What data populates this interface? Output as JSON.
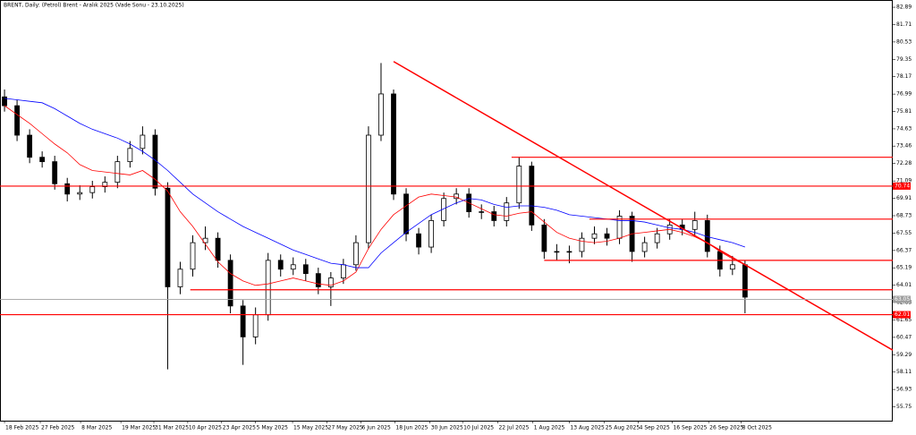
{
  "chart_data": {
    "type": "candlestick",
    "title": "BRENT, Daily:  (Petrol) Brent - Aralık 2025 (Vade Sonu - 23.10.2025)",
    "open": [
      76.8,
      76.2,
      74.2,
      72.7,
      72.4,
      70.9,
      70.2,
      70.3,
      70.7,
      71.0,
      72.4,
      73.3,
      74.2,
      70.6,
      63.9,
      65.1,
      66.9,
      67.2,
      65.7,
      62.6,
      60.5,
      62.0,
      65.7,
      65.1,
      65.4,
      64.8,
      63.9,
      64.5,
      65.4,
      66.9,
      74.2,
      77.0,
      70.2,
      67.5,
      66.6,
      68.4,
      69.9,
      70.2,
      69.0,
      69.0,
      68.4,
      69.6,
      72.1,
      68.1,
      66.3,
      66.3,
      66.3,
      67.2,
      67.5,
      67.2,
      68.7,
      66.3,
      66.9,
      67.5,
      68.1,
      67.8,
      68.4,
      66.3,
      65.1,
      65.4
    ],
    "high": [
      77.3,
      76.6,
      74.6,
      73.1,
      72.8,
      71.3,
      70.8,
      71.1,
      71.4,
      72.8,
      73.8,
      74.8,
      74.6,
      71.0,
      65.6,
      67.4,
      68.0,
      67.6,
      66.1,
      63.0,
      62.5,
      66.2,
      66.1,
      65.9,
      65.8,
      65.2,
      64.9,
      65.8,
      67.4,
      74.8,
      79.1,
      77.3,
      70.6,
      67.9,
      68.8,
      70.3,
      70.6,
      70.6,
      69.5,
      69.4,
      70.0,
      72.7,
      72.4,
      68.5,
      66.8,
      66.7,
      67.6,
      68.0,
      67.9,
      69.1,
      69.0,
      67.3,
      67.9,
      68.5,
      68.5,
      69.0,
      68.8,
      66.7,
      66.0,
      65.7
    ],
    "low": [
      75.8,
      73.8,
      72.3,
      72.0,
      70.5,
      69.7,
      69.8,
      69.9,
      70.3,
      70.6,
      72.0,
      72.9,
      70.1,
      58.3,
      63.4,
      64.6,
      66.4,
      65.2,
      62.1,
      58.6,
      60.0,
      61.6,
      64.6,
      64.7,
      64.3,
      63.4,
      62.6,
      64.1,
      65.0,
      66.5,
      73.8,
      69.8,
      67.0,
      66.1,
      66.2,
      68.0,
      69.5,
      68.6,
      68.5,
      68.0,
      68.0,
      69.2,
      67.7,
      65.8,
      65.7,
      65.5,
      65.9,
      66.8,
      66.7,
      66.8,
      65.6,
      65.9,
      66.5,
      67.1,
      67.4,
      67.4,
      65.9,
      64.6,
      64.7,
      62.1
    ],
    "close": [
      76.2,
      74.2,
      72.7,
      72.4,
      70.9,
      70.2,
      70.3,
      70.7,
      71.0,
      72.4,
      73.3,
      74.2,
      70.6,
      63.9,
      65.1,
      66.9,
      67.2,
      65.7,
      62.6,
      60.5,
      62.0,
      65.7,
      65.1,
      65.4,
      64.8,
      63.9,
      64.5,
      65.4,
      66.9,
      74.2,
      77.0,
      70.2,
      67.5,
      66.6,
      68.4,
      69.9,
      70.2,
      69.0,
      69.0,
      68.4,
      69.6,
      72.1,
      68.1,
      66.3,
      66.3,
      66.3,
      67.2,
      67.5,
      67.2,
      68.7,
      66.3,
      66.9,
      67.5,
      68.1,
      67.8,
      68.4,
      66.3,
      65.1,
      65.4,
      63.2
    ],
    "overlays": [
      {
        "color": "#ff0000",
        "values": [
          76.2,
          75.6,
          75.0,
          74.3,
          73.6,
          73.0,
          72.2,
          71.8,
          71.7,
          71.6,
          71.5,
          71.8,
          71.2,
          70.4,
          69.0,
          68.0,
          66.8,
          65.6,
          64.8,
          64.3,
          64.0,
          64.1,
          64.3,
          64.5,
          64.3,
          64.1,
          64.0,
          64.3,
          64.9,
          66.5,
          67.8,
          68.8,
          69.4,
          70.0,
          70.2,
          70.1,
          70.0,
          69.6,
          69.2,
          68.8,
          68.7,
          68.9,
          69.0,
          68.3,
          67.6,
          67.2,
          67.0,
          66.9,
          67.0,
          67.2,
          67.5,
          67.6,
          67.7,
          67.8,
          67.6,
          67.3,
          66.9,
          66.3,
          65.8,
          65.4
        ]
      },
      {
        "color": "#0000ff",
        "values": [
          76.7,
          76.6,
          76.5,
          76.4,
          76.0,
          75.5,
          75.0,
          74.6,
          74.3,
          74.0,
          73.6,
          73.1,
          72.5,
          71.8,
          71.0,
          70.2,
          69.6,
          69.0,
          68.5,
          68.0,
          67.6,
          67.2,
          66.8,
          66.4,
          66.1,
          65.8,
          65.5,
          65.4,
          65.2,
          65.2,
          66.2,
          66.9,
          67.6,
          68.2,
          68.8,
          69.2,
          69.6,
          69.9,
          69.8,
          69.5,
          69.3,
          69.4,
          69.4,
          69.3,
          69.1,
          68.8,
          68.7,
          68.6,
          68.5,
          68.4,
          68.4,
          68.3,
          68.1,
          67.9,
          67.8,
          67.6,
          67.3,
          67.1,
          66.9,
          66.6
        ]
      }
    ],
    "levels": [
      {
        "value": 72.7,
        "start": 40.4
      },
      {
        "value": 70.74
      },
      {
        "value": 68.5,
        "start": 46.6
      },
      {
        "value": 65.7,
        "start": 43.0
      },
      {
        "value": 63.7,
        "start": 14.8
      },
      {
        "value": 62.01
      }
    ],
    "level_color": "#ff0000",
    "trendline": {
      "x": [
        31.0,
        70.77
      ],
      "y": [
        79.2,
        59.6
      ],
      "color": "#ff0000"
    },
    "last_price": 63.05,
    "last_color": "#a0a0a0",
    "xlim": [
      -0.36,
      70.77
    ],
    "ylim": [
      54.81,
      83.38
    ],
    "yticks": [
      82.89,
      81.71,
      80.53,
      79.35,
      78.17,
      76.99,
      75.81,
      74.63,
      73.46,
      72.28,
      71.09,
      69.91,
      68.73,
      67.55,
      66.37,
      65.19,
      64.01,
      62.83,
      61.65,
      60.47,
      59.29,
      58.11,
      56.93,
      55.75
    ],
    "xticks": [
      {
        "value": 0,
        "label": "18 Feb 2025"
      },
      {
        "value": 2.85,
        "label": "27 Feb 2025"
      },
      {
        "value": 6.06,
        "label": "8 Mar 2025"
      },
      {
        "value": 9.27,
        "label": "19 Mar 2025"
      },
      {
        "value": 11.9,
        "label": "31 Mar 2025"
      },
      {
        "value": 14.6,
        "label": "10 Apr 2025"
      },
      {
        "value": 17.3,
        "label": "23 Apr 2025"
      },
      {
        "value": 20.0,
        "label": "5 May 2025"
      },
      {
        "value": 22.95,
        "label": "15 May 2025"
      },
      {
        "value": 25.7,
        "label": "27 May 2025"
      },
      {
        "value": 28.4,
        "label": "6 Jun 2025"
      },
      {
        "value": 31.1,
        "label": "18 Jun 2025"
      },
      {
        "value": 33.9,
        "label": "30 Jun 2025"
      },
      {
        "value": 36.5,
        "label": "10 Jul 2025"
      },
      {
        "value": 39.3,
        "label": "22 Jul 2025"
      },
      {
        "value": 42.1,
        "label": "1 Aug 2025"
      },
      {
        "value": 45.0,
        "label": "13 Aug 2025"
      },
      {
        "value": 47.8,
        "label": "25 Aug 2025"
      },
      {
        "value": 50.5,
        "label": "4 Sep 2025"
      },
      {
        "value": 53.2,
        "label": "16 Sep 2025"
      },
      {
        "value": 56.1,
        "label": "26 Sep 2025"
      },
      {
        "value": 58.7,
        "label": "8 Oct 2025"
      }
    ]
  }
}
